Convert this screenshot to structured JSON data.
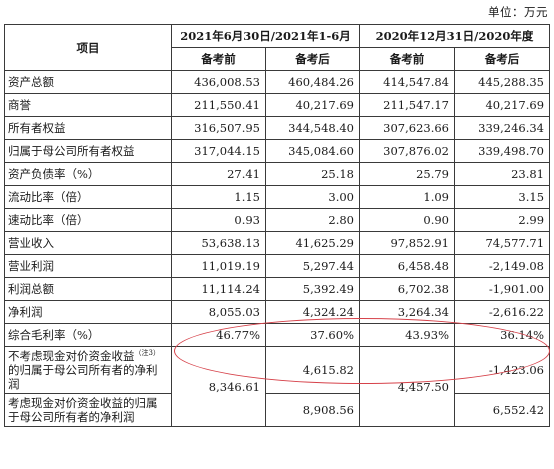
{
  "unit": "单位：万元",
  "header": {
    "item": "项目",
    "period1": "2021年6月30日/2021年1-6月",
    "period2": "2020年12月31日/2020年度",
    "sub": [
      "备考前",
      "备考后",
      "备考前",
      "备考后"
    ]
  },
  "rows": [
    {
      "label": "资产总额",
      "v": [
        "436,008.53",
        "460,484.26",
        "414,547.84",
        "445,288.35"
      ]
    },
    {
      "label": "商誉",
      "v": [
        "211,550.41",
        "40,217.69",
        "211,547.17",
        "40,217.69"
      ]
    },
    {
      "label": "所有者权益",
      "v": [
        "316,507.95",
        "344,548.40",
        "307,623.66",
        "339,246.34"
      ]
    },
    {
      "label": "归属于母公司所有者权益",
      "v": [
        "317,044.15",
        "345,084.60",
        "307,876.02",
        "339,498.70"
      ]
    },
    {
      "label": "资产负债率（%）",
      "v": [
        "27.41",
        "25.18",
        "25.79",
        "23.81"
      ]
    },
    {
      "label": "流动比率（倍）",
      "v": [
        "1.15",
        "3.00",
        "1.09",
        "3.15"
      ]
    },
    {
      "label": "速动比率（倍）",
      "v": [
        "0.93",
        "2.80",
        "0.90",
        "2.99"
      ]
    },
    {
      "label": "营业收入",
      "v": [
        "53,638.13",
        "41,625.29",
        "97,852.91",
        "74,577.71"
      ]
    },
    {
      "label": "营业利润",
      "v": [
        "11,019.19",
        "5,297.44",
        "6,458.48",
        "-2,149.08"
      ]
    },
    {
      "label": "利润总额",
      "v": [
        "11,114.24",
        "5,392.49",
        "6,702.38",
        "-1,901.00"
      ]
    },
    {
      "label": "净利润",
      "v": [
        "8,055.03",
        "4,324.24",
        "3,264.34",
        "-2,616.22"
      ]
    },
    {
      "label": "综合毛利率（%）",
      "v": [
        "46.77%",
        "37.60%",
        "43.93%",
        "36.14%"
      ]
    }
  ],
  "special": {
    "label1_a": "不考虑现金对价资金收益",
    "label1_note": "（注3）",
    "label1_b": "的归属于母公司所有者的净利润",
    "label2": "考虑现金对价资金收益的归属于母公司所有者的净利润",
    "merged_before_2021": "8,346.61",
    "after_2021_excl": "4,615.82",
    "after_2021_incl": "8,908.56",
    "merged_before_2020": "4,457.50",
    "after_2020_excl": "-1,423.06",
    "after_2020_incl": "6,552.42"
  },
  "highlight": {
    "color": "#d6424a"
  }
}
